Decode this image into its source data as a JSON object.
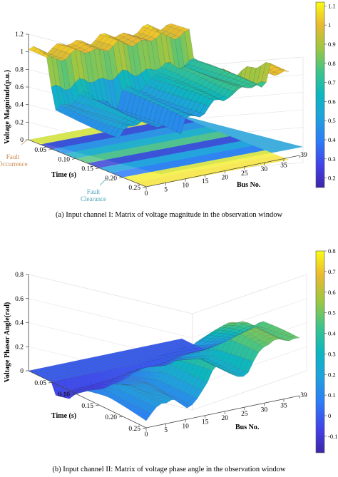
{
  "chart_data": [
    {
      "type": "surface",
      "caption": "(a) Input channel I: Matrix of voltage magnitude in the observation window",
      "zlabel": "Voltage Magnitude(p.u.)",
      "xlabel": "Time (s)",
      "ylabel": "Bus No.",
      "z_ticks": [
        "0",
        "0.2",
        "0.4",
        "0.6",
        "0.8",
        "1",
        "1.2"
      ],
      "zlim": [
        0,
        1.2
      ],
      "time_ticks": [
        "0.05",
        "0.10",
        "0.15",
        "0.20",
        "0.25"
      ],
      "time_range": [
        0,
        0.25
      ],
      "bus_ticks": [
        "0",
        "5",
        "10",
        "15",
        "20",
        "25",
        "30",
        "35",
        "39"
      ],
      "bus_range": [
        0,
        39
      ],
      "colorbar_ticks": [
        "0.2",
        "0.3",
        "0.4",
        "0.5",
        "0.6",
        "0.7",
        "0.8",
        "0.9",
        "1",
        "1.1"
      ],
      "colorbar_range": [
        0.15,
        1.12
      ],
      "annotations": [
        {
          "text": "Fault Occurrence",
          "color": "#c8884b"
        },
        {
          "text": "Fault Clearance",
          "color": "#4aa5b8"
        }
      ],
      "phases": [
        {
          "t": 0.0,
          "level": 1.0
        },
        {
          "t": 0.05,
          "level": 0.35
        },
        {
          "t": 0.2,
          "level": 0.35
        },
        {
          "t": 0.21,
          "level": 1.0
        },
        {
          "t": 0.25,
          "level": 1.0
        }
      ],
      "colormap": "parula",
      "grid": true
    },
    {
      "type": "surface",
      "caption": "(b) Input channel II: Matrix of voltage phase angle in the observation window",
      "zlabel": "Voltage Phasor Angle(rad)",
      "xlabel": "Time (s)",
      "ylabel": "Bus No.",
      "z_ticks": [
        "0",
        "0.2",
        "0.4",
        "0.6",
        "0.8"
      ],
      "zlim": [
        0,
        0.8
      ],
      "time_ticks": [
        "0.05",
        "0.10",
        "0.15",
        "0.20",
        "0.25"
      ],
      "time_range": [
        0,
        0.25
      ],
      "bus_ticks": [
        "0",
        "5",
        "10",
        "15",
        "20",
        "25",
        "30",
        "35",
        "39"
      ],
      "bus_range": [
        0,
        39
      ],
      "colorbar_ticks": [
        "-0.1",
        "0",
        "0.1",
        "0.2",
        "0.3",
        "0.4",
        "0.5",
        "0.6",
        "0.7",
        "0.8"
      ],
      "colorbar_range": [
        -0.18,
        0.8
      ],
      "colormap": "parula",
      "grid": true
    }
  ]
}
